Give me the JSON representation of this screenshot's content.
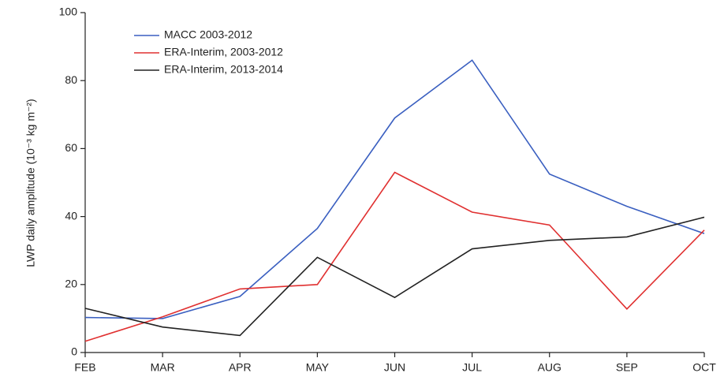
{
  "chart_data": {
    "type": "line",
    "y_label": "LWP daily amplitude (10⁻³ kg m⁻²)",
    "categories": [
      "FEB",
      "MAR",
      "APR",
      "MAY",
      "JUN",
      "JUL",
      "AUG",
      "SEP",
      "OCT"
    ],
    "series": [
      {
        "name": "MACC 2003-2012",
        "color": "#3a5fc0",
        "values": [
          10.3,
          10,
          16.5,
          36.5,
          69,
          86,
          52.5,
          43,
          35
        ]
      },
      {
        "name": "ERA-Interim, 2003-2012",
        "color": "#e03030",
        "values": [
          3.3,
          10.5,
          18.7,
          20,
          53,
          41.3,
          37.5,
          12.8,
          36
        ]
      },
      {
        "name": "ERA-Interim, 2013-2014",
        "color": "#222222",
        "values": [
          13,
          7.5,
          5,
          28,
          16.2,
          30.5,
          33,
          34,
          39.8
        ]
      }
    ],
    "ylim": [
      0,
      100
    ],
    "yticks": [
      0,
      20,
      40,
      60,
      80,
      100
    ],
    "grid": false,
    "legend": "upper-left"
  }
}
